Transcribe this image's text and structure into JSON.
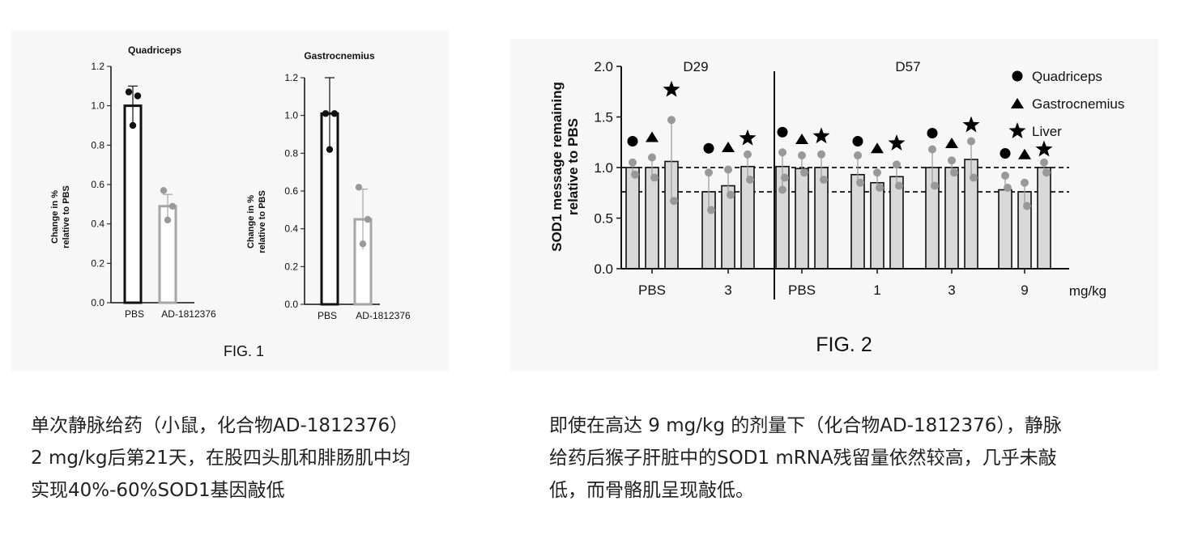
{
  "fig1": {
    "label": "FIG. 1",
    "charts": [
      {
        "title": "Quadriceps",
        "ylabel_line1": "Change in %",
        "ylabel_line2": "relative to PBS"
      },
      {
        "title": "Gastrocnemius",
        "ylabel_line1": "Change in %",
        "ylabel_line2": "relative to PBS"
      }
    ]
  },
  "fig2": {
    "label": "FIG. 2",
    "ylabel_line1": "SOD1 message remaining",
    "ylabel_line2": "relative to PBS",
    "unit_label": "mg/kg",
    "day_labels": [
      "D29",
      "D57"
    ],
    "group_labels": [
      "PBS",
      "3",
      "PBS",
      "1",
      "3",
      "9"
    ],
    "legend": [
      {
        "symbol": "circle",
        "label": "Quadriceps"
      },
      {
        "symbol": "triangle",
        "label": "Gastrocnemius"
      },
      {
        "symbol": "star",
        "label": "Liver"
      }
    ]
  },
  "chart_data": [
    {
      "type": "bar",
      "title": "Quadriceps",
      "ylabel": "Change in % relative to PBS",
      "categories": [
        "PBS",
        "AD-1812376"
      ],
      "values": [
        1.0,
        0.49
      ],
      "error": [
        0.1,
        0.06
      ],
      "points": [
        [
          1.07,
          1.05,
          0.9
        ],
        [
          0.57,
          0.49,
          0.42
        ]
      ],
      "bar_colors": [
        "#111111",
        "#a6a6a6"
      ],
      "ylim": [
        0,
        1.2
      ],
      "yticks": [
        "0.0",
        "0.2",
        "0.4",
        "0.6",
        "0.8",
        "1.0",
        "1.2"
      ]
    },
    {
      "type": "bar",
      "title": "Gastrocnemius",
      "ylabel": "Change in % relative to PBS",
      "categories": [
        "PBS",
        "AD-1812376"
      ],
      "values": [
        1.01,
        0.45
      ],
      "error": [
        0.19,
        0.16
      ],
      "points": [
        [
          1.01,
          1.01,
          0.82
        ],
        [
          0.62,
          0.45,
          0.32
        ]
      ],
      "bar_colors": [
        "#111111",
        "#a6a6a6"
      ],
      "ylim": [
        0,
        1.2
      ],
      "yticks": [
        "0.0",
        "0.2",
        "0.4",
        "0.6",
        "0.8",
        "1.0",
        "1.2"
      ]
    },
    {
      "type": "bar",
      "ylabel": "SOD1 message remaining relative to PBS",
      "xlabel_unit": "mg/kg",
      "ylim": [
        0,
        2.0
      ],
      "yticks": [
        "0.0",
        "0.5",
        "1.0",
        "1.5",
        "2.0"
      ],
      "reference_lines": [
        1.0,
        0.76
      ],
      "groups": [
        {
          "label": "PBS",
          "day": "D29",
          "series": {
            "Quadriceps": {
              "value": 1.0,
              "points": [
                1.05,
                0.93
              ]
            },
            "Gastrocnemius": {
              "value": 1.0,
              "points": [
                1.1,
                0.9
              ]
            },
            "Liver": {
              "value": 1.06,
              "points": [
                1.47,
                0.67
              ]
            }
          },
          "markers": {
            "Quadriceps": 1.26,
            "Gastrocnemius": 1.3,
            "Liver": 1.77
          }
        },
        {
          "label": "3",
          "day": "D29",
          "series": {
            "Quadriceps": {
              "value": 0.76,
              "points": [
                0.95,
                0.58
              ]
            },
            "Gastrocnemius": {
              "value": 0.82,
              "points": [
                0.98,
                0.73
              ]
            },
            "Liver": {
              "value": 1.01,
              "points": [
                1.13,
                0.88
              ]
            }
          },
          "markers": {
            "Quadriceps": 1.19,
            "Gastrocnemius": 1.2,
            "Liver": 1.29
          }
        },
        {
          "label": "PBS",
          "day": "D57",
          "series": {
            "Quadriceps": {
              "value": 1.01,
              "points": [
                1.15,
                0.9,
                0.78
              ]
            },
            "Gastrocnemius": {
              "value": 0.99,
              "points": [
                1.12,
                0.95
              ]
            },
            "Liver": {
              "value": 1.0,
              "points": [
                1.13,
                0.88
              ]
            }
          },
          "markers": {
            "Quadriceps": 1.35,
            "Gastrocnemius": 1.28,
            "Liver": 1.31
          }
        },
        {
          "label": "1",
          "day": "D57",
          "series": {
            "Quadriceps": {
              "value": 0.93,
              "points": [
                1.12,
                0.85
              ]
            },
            "Gastrocnemius": {
              "value": 0.85,
              "points": [
                0.95,
                0.8
              ]
            },
            "Liver": {
              "value": 0.91,
              "points": [
                1.03,
                0.82
              ]
            }
          },
          "markers": {
            "Quadriceps": 1.26,
            "Gastrocnemius": 1.19,
            "Liver": 1.24
          }
        },
        {
          "label": "3",
          "day": "D57",
          "series": {
            "Quadriceps": {
              "value": 1.0,
              "points": [
                1.18,
                0.82
              ]
            },
            "Gastrocnemius": {
              "value": 1.0,
              "points": [
                1.07,
                0.95
              ]
            },
            "Liver": {
              "value": 1.08,
              "points": [
                1.26,
                0.9
              ]
            }
          },
          "markers": {
            "Quadriceps": 1.34,
            "Gastrocnemius": 1.24,
            "Liver": 1.42
          }
        },
        {
          "label": "9",
          "day": "D57",
          "series": {
            "Quadriceps": {
              "value": 0.78,
              "points": [
                0.92,
                0.8
              ]
            },
            "Gastrocnemius": {
              "value": 0.76,
              "points": [
                0.85,
                0.62
              ]
            },
            "Liver": {
              "value": 1.0,
              "points": [
                1.05,
                0.95
              ]
            }
          },
          "markers": {
            "Quadriceps": 1.14,
            "Gastrocnemius": 1.13,
            "Liver": 1.18
          }
        }
      ]
    }
  ],
  "captions": {
    "left": [
      "单次静脉给药（小鼠，化合物AD-1812376）",
      "2 mg/kg后第21天，在股四头肌和腓肠肌中均",
      "实现40%-60%SOD1基因敲低"
    ],
    "right": [
      "即使在高达 9 mg/kg 的剂量下（化合物AD-1812376），静脉",
      "给药后猴子肝脏中的SOD1 mRNA残留量依然较高，几乎未敲",
      "低，而骨骼肌呈现敲低。"
    ]
  }
}
